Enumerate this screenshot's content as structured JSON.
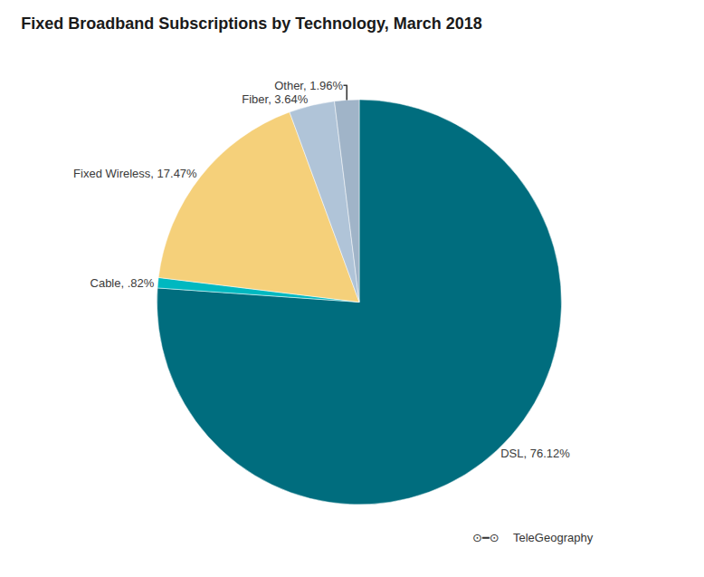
{
  "chart_data": {
    "type": "pie",
    "title": "Fixed Broadband Subscriptions by Technology, March 2018",
    "categories": [
      "DSL",
      "Cable",
      "Fixed Wireless",
      "Fiber",
      "Other"
    ],
    "values": [
      76.12,
      0.82,
      17.47,
      3.64,
      1.96
    ],
    "value_labels": [
      "DSL, 76.12%",
      "Cable, .82%",
      "Fixed Wireless, 17.47%",
      "Fiber, 3.64%",
      "Other, 1.96%"
    ],
    "colors": [
      "#006d7e",
      "#00b8c0",
      "#f5d07a",
      "#b0c4d8",
      "#a0b4c8"
    ],
    "annotations": [
      "⊙━⊙",
      "TeleGeography"
    ],
    "data_labels": true
  }
}
